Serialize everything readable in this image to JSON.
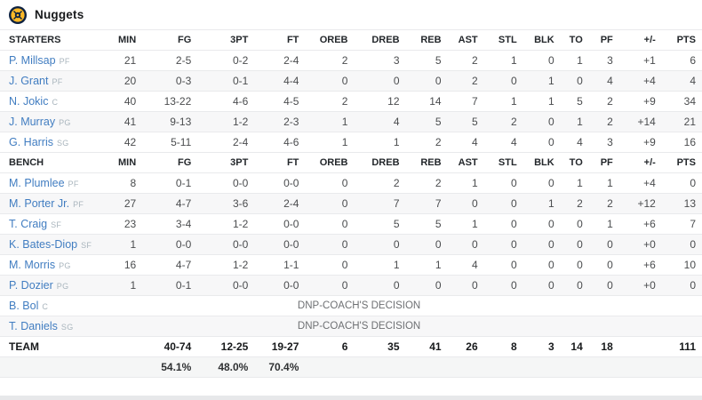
{
  "team": {
    "name": "Nuggets"
  },
  "colors": {
    "link_blue": "#417dc1",
    "position_gray": "#a9b5bd",
    "stripe_bg": "#f7f7f8",
    "logo_navy": "#0e2240",
    "logo_gold": "#fdb927"
  },
  "table": {
    "columns": [
      "STARTERS",
      "MIN",
      "FG",
      "3PT",
      "FT",
      "OREB",
      "DREB",
      "REB",
      "AST",
      "STL",
      "BLK",
      "TO",
      "PF",
      "+/-",
      "PTS"
    ],
    "bench_label": "BENCH",
    "dnp_note": "DNP-COACH'S DECISION",
    "starters": [
      {
        "name": "P. Millsap",
        "pos": "PF",
        "stats": [
          "21",
          "2-5",
          "0-2",
          "2-4",
          "2",
          "3",
          "5",
          "2",
          "1",
          "0",
          "1",
          "3",
          "+1",
          "6"
        ]
      },
      {
        "name": "J. Grant",
        "pos": "PF",
        "stats": [
          "20",
          "0-3",
          "0-1",
          "4-4",
          "0",
          "0",
          "0",
          "2",
          "0",
          "1",
          "0",
          "4",
          "+4",
          "4"
        ]
      },
      {
        "name": "N. Jokic",
        "pos": "C",
        "stats": [
          "40",
          "13-22",
          "4-6",
          "4-5",
          "2",
          "12",
          "14",
          "7",
          "1",
          "1",
          "5",
          "2",
          "+9",
          "34"
        ]
      },
      {
        "name": "J. Murray",
        "pos": "PG",
        "stats": [
          "41",
          "9-13",
          "1-2",
          "2-3",
          "1",
          "4",
          "5",
          "5",
          "2",
          "0",
          "1",
          "2",
          "+14",
          "21"
        ]
      },
      {
        "name": "G. Harris",
        "pos": "SG",
        "stats": [
          "42",
          "5-11",
          "2-4",
          "4-6",
          "1",
          "1",
          "2",
          "4",
          "4",
          "0",
          "4",
          "3",
          "+9",
          "16"
        ]
      }
    ],
    "bench": [
      {
        "name": "M. Plumlee",
        "pos": "PF",
        "stats": [
          "8",
          "0-1",
          "0-0",
          "0-0",
          "0",
          "2",
          "2",
          "1",
          "0",
          "0",
          "1",
          "1",
          "+4",
          "0"
        ]
      },
      {
        "name": "M. Porter Jr.",
        "pos": "PF",
        "stats": [
          "27",
          "4-7",
          "3-6",
          "2-4",
          "0",
          "7",
          "7",
          "0",
          "0",
          "1",
          "2",
          "2",
          "+12",
          "13"
        ]
      },
      {
        "name": "T. Craig",
        "pos": "SF",
        "stats": [
          "23",
          "3-4",
          "1-2",
          "0-0",
          "0",
          "5",
          "5",
          "1",
          "0",
          "0",
          "0",
          "1",
          "+6",
          "7"
        ]
      },
      {
        "name": "K. Bates-Diop",
        "pos": "SF",
        "stats": [
          "1",
          "0-0",
          "0-0",
          "0-0",
          "0",
          "0",
          "0",
          "0",
          "0",
          "0",
          "0",
          "0",
          "+0",
          "0"
        ]
      },
      {
        "name": "M. Morris",
        "pos": "PG",
        "stats": [
          "16",
          "4-7",
          "1-2",
          "1-1",
          "0",
          "1",
          "1",
          "4",
          "0",
          "0",
          "0",
          "0",
          "+6",
          "10"
        ]
      },
      {
        "name": "P. Dozier",
        "pos": "PG",
        "stats": [
          "1",
          "0-1",
          "0-0",
          "0-0",
          "0",
          "0",
          "0",
          "0",
          "0",
          "0",
          "0",
          "0",
          "+0",
          "0"
        ]
      },
      {
        "name": "B. Bol",
        "pos": "C",
        "dnp": true
      },
      {
        "name": "T. Daniels",
        "pos": "SG",
        "dnp": true
      }
    ],
    "team_row": {
      "label": "TEAM",
      "stats": [
        "",
        "40-74",
        "12-25",
        "19-27",
        "6",
        "35",
        "41",
        "26",
        "8",
        "3",
        "14",
        "18",
        "",
        "111"
      ]
    },
    "pct_row": [
      "",
      "54.1%",
      "48.0%",
      "70.4%",
      "",
      "",
      "",
      "",
      "",
      "",
      "",
      "",
      "",
      ""
    ]
  }
}
